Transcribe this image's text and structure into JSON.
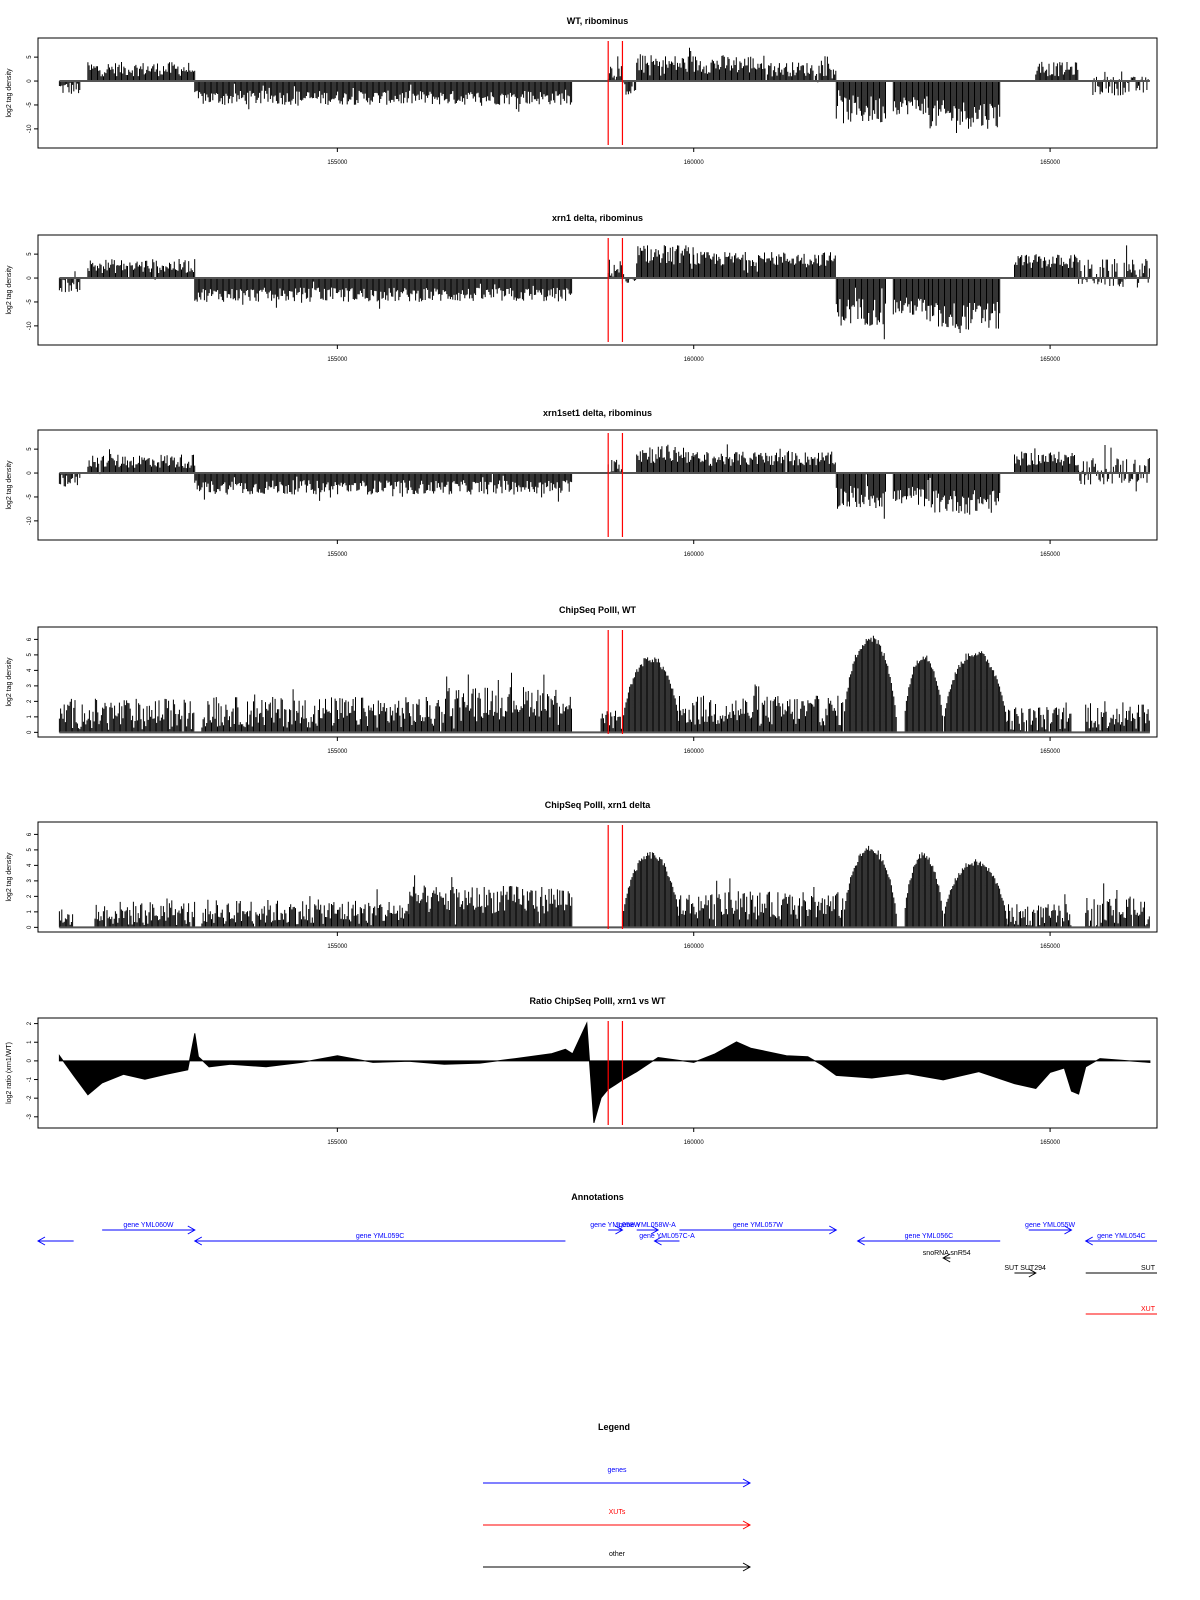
{
  "colors": {
    "genes": "#0000ff",
    "xuts": "#ff0000",
    "other": "#000000",
    "marker": "#ff0000",
    "baseline": "#555555"
  },
  "x_axis": {
    "ticks": [
      155000,
      160000,
      165000
    ],
    "tick_labels": [
      "155000",
      "160000",
      "165000"
    ]
  },
  "chart_data": [
    {
      "type": "bar",
      "title": "WT, ribominus",
      "ylabel": "log2 tag density",
      "xlim": [
        150800,
        166500
      ],
      "ylim": [
        -14,
        9
      ],
      "yticks": [
        -10,
        -5,
        0,
        5
      ],
      "ytick_labels": [
        "-10",
        "-5",
        "0",
        "5"
      ],
      "markers": [
        158800,
        159000
      ],
      "segments": [
        {
          "start": 151100,
          "end": 151400,
          "mean": -1.5,
          "spread": 1.5
        },
        {
          "start": 151500,
          "end": 153000,
          "mean": 2.5,
          "spread": 1.5
        },
        {
          "start": 153000,
          "end": 158300,
          "mean": -3.5,
          "spread": 1.5
        },
        {
          "start": 158800,
          "end": 159000,
          "mean": 2,
          "spread": 2
        },
        {
          "start": 159000,
          "end": 159200,
          "mean": -1.5,
          "spread": 1.5
        },
        {
          "start": 159200,
          "end": 161000,
          "mean": 3.5,
          "spread": 2
        },
        {
          "start": 161000,
          "end": 162000,
          "mean": 2.5,
          "spread": 1.5
        },
        {
          "start": 162000,
          "end": 162700,
          "mean": -6,
          "spread": 3
        },
        {
          "start": 162800,
          "end": 163300,
          "mean": -5,
          "spread": 2
        },
        {
          "start": 163300,
          "end": 164300,
          "mean": -7,
          "spread": 3
        },
        {
          "start": 164800,
          "end": 165400,
          "mean": 2.5,
          "spread": 1.5
        },
        {
          "start": 165600,
          "end": 166400,
          "mean": -1,
          "spread": 2
        }
      ]
    },
    {
      "type": "bar",
      "title": "xrn1 delta, ribominus",
      "ylabel": "log2 tag density",
      "xlim": [
        150800,
        166500
      ],
      "ylim": [
        -14,
        9
      ],
      "yticks": [
        -10,
        -5,
        0,
        5
      ],
      "ytick_labels": [
        "-10",
        "-5",
        "0",
        "5"
      ],
      "markers": [
        158800,
        159000
      ],
      "segments": [
        {
          "start": 151100,
          "end": 151400,
          "mean": -1.5,
          "spread": 1.5
        },
        {
          "start": 151500,
          "end": 153000,
          "mean": 2.5,
          "spread": 1.5
        },
        {
          "start": 153000,
          "end": 158300,
          "mean": -3.5,
          "spread": 1.5
        },
        {
          "start": 158800,
          "end": 159000,
          "mean": 2,
          "spread": 2
        },
        {
          "start": 159000,
          "end": 159200,
          "mean": -1,
          "spread": 1
        },
        {
          "start": 159200,
          "end": 160000,
          "mean": 5,
          "spread": 2
        },
        {
          "start": 160000,
          "end": 162000,
          "mean": 4,
          "spread": 1.5
        },
        {
          "start": 162000,
          "end": 162700,
          "mean": -7,
          "spread": 3
        },
        {
          "start": 162800,
          "end": 163300,
          "mean": -6,
          "spread": 2
        },
        {
          "start": 163300,
          "end": 164300,
          "mean": -8,
          "spread": 3
        },
        {
          "start": 164500,
          "end": 165400,
          "mean": 3.5,
          "spread": 1.5
        },
        {
          "start": 165400,
          "end": 166400,
          "mean": 1,
          "spread": 3
        }
      ]
    },
    {
      "type": "bar",
      "title": "xrn1set1 delta, ribominus",
      "ylabel": "log2 tag density",
      "xlim": [
        150800,
        166500
      ],
      "ylim": [
        -14,
        9
      ],
      "yticks": [
        -10,
        -5,
        0,
        5
      ],
      "ytick_labels": [
        "-10",
        "-5",
        "0",
        "5"
      ],
      "markers": [
        158800,
        159000
      ],
      "segments": [
        {
          "start": 151100,
          "end": 151400,
          "mean": -1.5,
          "spread": 1.5
        },
        {
          "start": 151500,
          "end": 153000,
          "mean": 2.5,
          "spread": 1.5
        },
        {
          "start": 153000,
          "end": 158300,
          "mean": -3,
          "spread": 1.5
        },
        {
          "start": 158800,
          "end": 159000,
          "mean": 2,
          "spread": 2
        },
        {
          "start": 159200,
          "end": 160000,
          "mean": 4,
          "spread": 2
        },
        {
          "start": 160000,
          "end": 162000,
          "mean": 3,
          "spread": 1.5
        },
        {
          "start": 162000,
          "end": 162700,
          "mean": -5,
          "spread": 2.5
        },
        {
          "start": 162800,
          "end": 163300,
          "mean": -5,
          "spread": 2
        },
        {
          "start": 163300,
          "end": 164300,
          "mean": -6,
          "spread": 2.5
        },
        {
          "start": 164500,
          "end": 165400,
          "mean": 3,
          "spread": 1.5
        },
        {
          "start": 165400,
          "end": 166400,
          "mean": 0.5,
          "spread": 3
        }
      ]
    },
    {
      "type": "area",
      "title": "ChipSeq PolII, WT",
      "ylabel": "log2 tag density",
      "xlim": [
        150800,
        166500
      ],
      "ylim": [
        -0.3,
        6.8
      ],
      "yticks": [
        0,
        1,
        2,
        3,
        4,
        5,
        6
      ],
      "ytick_labels": [
        "0",
        "1",
        "2",
        "3",
        "4",
        "5",
        "6"
      ],
      "markers": [
        158800,
        159000
      ],
      "segments": [
        {
          "start": 151100,
          "end": 153000,
          "mean": 1.2,
          "spread": 1
        },
        {
          "start": 153100,
          "end": 156500,
          "mean": 1.3,
          "spread": 1
        },
        {
          "start": 156500,
          "end": 158300,
          "mean": 2,
          "spread": 1
        },
        {
          "start": 158700,
          "end": 159000,
          "mean": 0.8,
          "spread": 0.6
        },
        {
          "start": 159000,
          "end": 159800,
          "mean": 0,
          "spread": 0,
          "dome": true,
          "peak": 5
        },
        {
          "start": 159800,
          "end": 162100,
          "mean": 1.4,
          "spread": 1
        },
        {
          "start": 162100,
          "end": 162850,
          "mean": 0,
          "spread": 0,
          "dome": true,
          "peak": 6.4
        },
        {
          "start": 162950,
          "end": 163500,
          "mean": 0,
          "spread": 0,
          "dome": true,
          "peak": 5.2
        },
        {
          "start": 163500,
          "end": 164400,
          "mean": 0,
          "spread": 0,
          "dome": true,
          "peak": 5.4
        },
        {
          "start": 164400,
          "end": 165300,
          "mean": 0.9,
          "spread": 0.8
        },
        {
          "start": 165500,
          "end": 166400,
          "mean": 1.2,
          "spread": 1
        }
      ]
    },
    {
      "type": "area",
      "title": "ChipSeq PolII, xrn1 delta",
      "ylabel": "log2 tag density",
      "xlim": [
        150800,
        166500
      ],
      "ylim": [
        -0.3,
        6.8
      ],
      "yticks": [
        0,
        1,
        2,
        3,
        4,
        5,
        6
      ],
      "ytick_labels": [
        "0",
        "1",
        "2",
        "3",
        "4",
        "5",
        "6"
      ],
      "markers": [
        158800,
        159000
      ],
      "segments": [
        {
          "start": 151100,
          "end": 151300,
          "mean": 0.6,
          "spread": 0.6
        },
        {
          "start": 151600,
          "end": 153000,
          "mean": 0.9,
          "spread": 0.8
        },
        {
          "start": 153100,
          "end": 156000,
          "mean": 1,
          "spread": 0.8
        },
        {
          "start": 156000,
          "end": 158300,
          "mean": 1.8,
          "spread": 0.9
        },
        {
          "start": 159000,
          "end": 159800,
          "mean": 0,
          "spread": 0,
          "dome": true,
          "peak": 4.9
        },
        {
          "start": 159800,
          "end": 162100,
          "mean": 1.4,
          "spread": 0.9
        },
        {
          "start": 162100,
          "end": 162850,
          "mean": 0,
          "spread": 0,
          "dome": true,
          "peak": 5.3
        },
        {
          "start": 162950,
          "end": 163500,
          "mean": 0,
          "spread": 0,
          "dome": true,
          "peak": 4.9
        },
        {
          "start": 163500,
          "end": 164400,
          "mean": 0,
          "spread": 0,
          "dome": true,
          "peak": 4.4
        },
        {
          "start": 164400,
          "end": 165300,
          "mean": 0.8,
          "spread": 0.7
        },
        {
          "start": 165500,
          "end": 166400,
          "mean": 1,
          "spread": 1
        }
      ]
    },
    {
      "type": "area",
      "title": "Ratio ChipSeq PolII, xrn1 vs WT",
      "ylabel": "log2 ratio (xrn1/WT)",
      "xlim": [
        150800,
        166500
      ],
      "ylim": [
        -3.6,
        2.3
      ],
      "yticks": [
        -3,
        -2,
        -1,
        0,
        1,
        2
      ],
      "ytick_labels": [
        "-3",
        "-2",
        "-1",
        "0",
        "1",
        "2"
      ],
      "markers": [
        158800,
        159000
      ],
      "x": [
        151100,
        151300,
        151500,
        151700,
        152000,
        152300,
        152600,
        152900,
        153000,
        153050,
        153200,
        153500,
        154000,
        154500,
        155000,
        155500,
        156000,
        156500,
        157000,
        157500,
        158000,
        158200,
        158300,
        158500,
        158600,
        158700,
        158800,
        158900,
        159000,
        159200,
        159500,
        160000,
        160300,
        160600,
        160800,
        161000,
        161300,
        161600,
        161800,
        162000,
        162500,
        163000,
        163500,
        164000,
        164500,
        164800,
        165000,
        165200,
        165300,
        165400,
        165500,
        165700,
        166000,
        166400
      ],
      "y": [
        0.3,
        -0.8,
        -1.8,
        -1.2,
        -0.7,
        -1,
        -0.7,
        -0.5,
        1.5,
        0.2,
        -0.3,
        -0.2,
        -0.3,
        -0.1,
        0.3,
        -0.1,
        0,
        -0.2,
        -0.1,
        0.1,
        0.4,
        0.6,
        0.4,
        2.0,
        -3.3,
        -2.0,
        -1.5,
        -1.3,
        -1.0,
        -0.6,
        0.2,
        -0.1,
        0.4,
        1.0,
        0.7,
        0.5,
        0.3,
        0.2,
        -0.2,
        -0.8,
        -0.9,
        -0.7,
        -1.0,
        -0.6,
        -1.2,
        -1.5,
        -0.6,
        -0.4,
        -1.6,
        -1.8,
        -0.3,
        0.1,
        0.05,
        -0.1
      ]
    }
  ],
  "annotations": {
    "title": "Annotations",
    "tracks": [
      {
        "label": "",
        "start": 150800,
        "end": 151300,
        "dir": "left",
        "class": "genes",
        "row": 1
      },
      {
        "label": "gene YML060W",
        "start": 151700,
        "end": 153000,
        "dir": "right",
        "class": "genes",
        "row": 0
      },
      {
        "label": "gene YML059C",
        "start": 153000,
        "end": 158200,
        "dir": "left",
        "class": "genes",
        "row": 1
      },
      {
        "label": "gene YML058W",
        "start": 158800,
        "end": 159000,
        "dir": "right",
        "class": "genes",
        "row": 0
      },
      {
        "label": "gene YML058W-A",
        "start": 159200,
        "end": 159500,
        "dir": "right",
        "class": "genes",
        "row": 0
      },
      {
        "label": "gene YML057C-A",
        "start": 159450,
        "end": 159800,
        "dir": "left",
        "class": "genes",
        "row": 1
      },
      {
        "label": "gene YML057W",
        "start": 159800,
        "end": 162000,
        "dir": "right",
        "class": "genes",
        "row": 0
      },
      {
        "label": "gene YML056C",
        "start": 162300,
        "end": 164300,
        "dir": "left",
        "class": "genes",
        "row": 1
      },
      {
        "label": "gene YML055W",
        "start": 164700,
        "end": 165300,
        "dir": "right",
        "class": "genes",
        "row": 0
      },
      {
        "label": "gene YML054C",
        "start": 165500,
        "end": 166500,
        "dir": "left",
        "class": "genes",
        "row": 1
      },
      {
        "label": "snoRNA snR54",
        "start": 163500,
        "end": 163600,
        "dir": "left",
        "class": "other",
        "row": 2
      },
      {
        "label": "SUT SUT294",
        "start": 164500,
        "end": 164800,
        "dir": "right",
        "class": "other",
        "row": 3
      },
      {
        "label": "SUT",
        "start": 165500,
        "end": 166500,
        "dir": "none",
        "class": "other",
        "row": 4
      },
      {
        "label": "XUT",
        "start": 165500,
        "end": 166500,
        "dir": "none",
        "class": "xuts",
        "row": 5
      }
    ]
  },
  "legend": {
    "title": "Legend",
    "items": [
      {
        "label": "genes",
        "class": "genes"
      },
      {
        "label": "XUTs",
        "class": "xuts"
      },
      {
        "label": "other",
        "class": "other"
      }
    ]
  }
}
